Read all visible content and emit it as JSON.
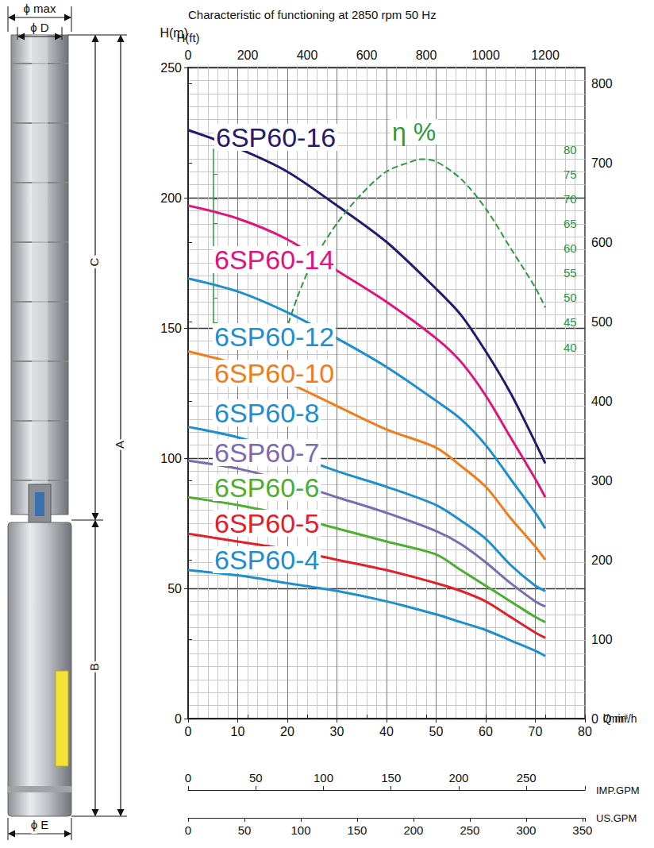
{
  "chart_data": {
    "type": "line",
    "title": "Characteristic of functioning at 2850 rpm 50 Hz",
    "x_label": "Q m³/h",
    "y_label": "H(m)",
    "xlim": [
      0,
      80
    ],
    "xticks": [
      0,
      10,
      20,
      30,
      40,
      50,
      60,
      70,
      80
    ],
    "ylim": [
      0,
      250
    ],
    "yticks": [
      0,
      50,
      100,
      150,
      200,
      250
    ],
    "y2_label": "H(ft)",
    "y2lim": [
      0,
      820.2
    ],
    "y2ticks": [
      0,
      100,
      200,
      300,
      400,
      500,
      600,
      700,
      800
    ],
    "x2_label": "l/min.",
    "x2lim": [
      0,
      1333.3
    ],
    "x2ticks": [
      0,
      200,
      400,
      600,
      800,
      1000,
      1200
    ],
    "x3_label": "IMP.GPM",
    "x3lim": [
      0,
      293.3
    ],
    "x3ticks": [
      0,
      50,
      100,
      150,
      200,
      250
    ],
    "x4_label": "US.GPM",
    "x4lim": [
      0,
      352.2
    ],
    "x4ticks": [
      0,
      50,
      100,
      150,
      200,
      250,
      300,
      350
    ],
    "y3lim": [
      40,
      80
    ],
    "y3ticks": [
      40,
      45,
      50,
      55,
      60,
      65,
      70,
      75,
      80
    ],
    "grid": true,
    "series": [
      {
        "name": "6SP60-16",
        "color": "#231c6e",
        "x": [
          0,
          10,
          20,
          30,
          40,
          50,
          55,
          60,
          65,
          70,
          72
        ],
        "values": [
          226,
          219,
          210,
          197,
          183,
          165,
          155,
          141,
          125,
          106,
          98
        ]
      },
      {
        "name": "6SP60-14",
        "color": "#e0147c",
        "x": [
          0,
          10,
          20,
          30,
          40,
          50,
          55,
          60,
          65,
          70,
          72
        ],
        "values": [
          197,
          192,
          184,
          172,
          160,
          146,
          137,
          124,
          108,
          92,
          85
        ]
      },
      {
        "name": "6SP60-12",
        "color": "#1e8fce",
        "x": [
          0,
          10,
          20,
          30,
          40,
          50,
          55,
          60,
          65,
          70,
          72
        ],
        "values": [
          169,
          164,
          156,
          146,
          135,
          122,
          115,
          105,
          92,
          79,
          73
        ]
      },
      {
        "name": "6SP60-10",
        "color": "#f07d1a",
        "x": [
          0,
          10,
          20,
          30,
          40,
          50,
          55,
          60,
          65,
          70,
          72
        ],
        "values": [
          141,
          136,
          129,
          120,
          111,
          104,
          97,
          89,
          77,
          66,
          61
        ]
      },
      {
        "name": "6SP60-8",
        "color": "#1e8fce",
        "x": [
          0,
          10,
          20,
          30,
          40,
          50,
          55,
          60,
          65,
          70,
          72
        ],
        "values": [
          112,
          108,
          102,
          95,
          89,
          82,
          76,
          69,
          59,
          51,
          49
        ]
      },
      {
        "name": "6SP60-7",
        "color": "#7a6cae",
        "x": [
          0,
          10,
          20,
          30,
          40,
          50,
          55,
          60,
          65,
          70,
          72
        ],
        "values": [
          99,
          96,
          91,
          85,
          79,
          72,
          67,
          60,
          52,
          45,
          43
        ]
      },
      {
        "name": "6SP60-6",
        "color": "#4caf32",
        "x": [
          0,
          10,
          20,
          30,
          40,
          50,
          55,
          60,
          65,
          70,
          72
        ],
        "values": [
          85,
          82,
          78,
          73,
          68,
          63,
          57,
          51,
          45,
          39,
          37
        ]
      },
      {
        "name": "6SP60-5",
        "color": "#e0202a",
        "x": [
          0,
          10,
          20,
          30,
          40,
          50,
          55,
          60,
          65,
          70,
          72
        ],
        "values": [
          71,
          68,
          65,
          61,
          57,
          52,
          49,
          45,
          39,
          33,
          31
        ]
      },
      {
        "name": "6SP60-4",
        "color": "#1e8fce",
        "x": [
          0,
          10,
          20,
          30,
          40,
          50,
          55,
          60,
          65,
          70,
          72
        ],
        "values": [
          57,
          55,
          52,
          49,
          45,
          40,
          37,
          34,
          30,
          26,
          24
        ]
      },
      {
        "name": "η %",
        "color": "#2a9a3a",
        "axis": "y3",
        "line_style": "dashed",
        "x": [
          19,
          22,
          25,
          30,
          35,
          40,
          45,
          47,
          50,
          55,
          60,
          65,
          70,
          72
        ],
        "values": [
          41,
          50,
          57,
          65,
          71,
          75.5,
          77.5,
          78,
          77.5,
          74,
          68,
          60,
          52,
          48
        ]
      }
    ]
  },
  "pump_drawing": {
    "phi_max": "ϕ max",
    "phi_D": "ϕ D",
    "C": "C",
    "A": "A",
    "B": "B",
    "phi_E": "ϕ E"
  }
}
